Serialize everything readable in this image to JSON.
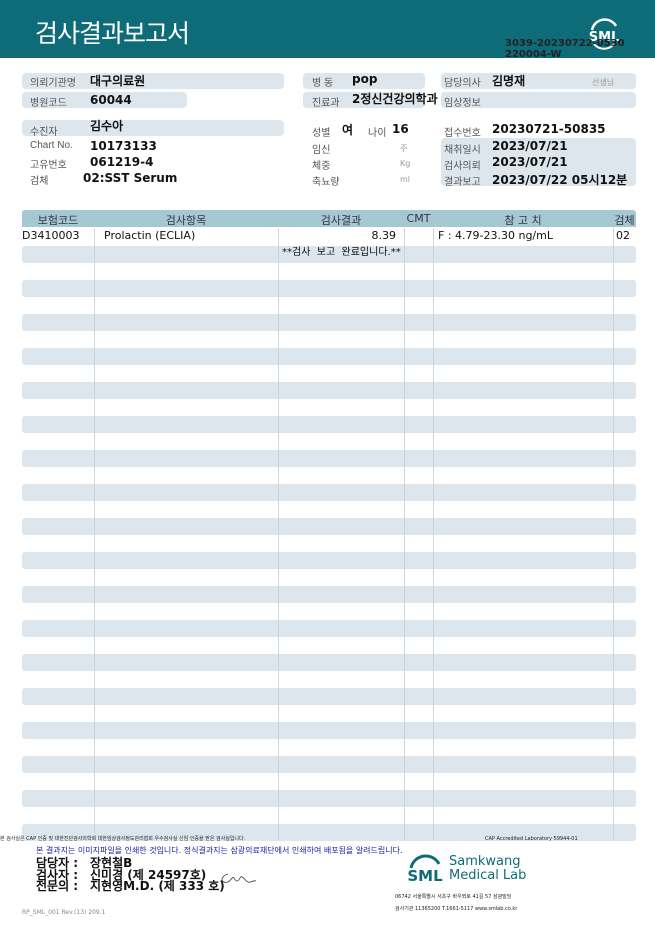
{
  "header": {
    "title": "검사결과보고서",
    "doc_no_line1": "3039-20230722-0530",
    "doc_no_line2": "220004-W",
    "logo": "SML"
  },
  "info": {
    "institution_label": "의뢰기관명",
    "institution": "대구의료원",
    "hospital_code_label": "병원코드",
    "hospital_code": "60044",
    "ward_label": "병 동",
    "ward": "pop",
    "dept_label": "진료과",
    "dept": "2정신건강의학과",
    "doctor_label": "담당의사",
    "doctor": "김명재",
    "doctor_suffix": "선생님",
    "clinical_label": "임상정보",
    "patient_label": "수진자",
    "patient": "김수아",
    "chart_label": "Chart No.",
    "chart": "10173133",
    "id_label": "고유번호",
    "id": "061219-4",
    "specimen_label": "검체",
    "specimen": "02:SST Serum",
    "sex_label": "성별",
    "sex": "여",
    "age_label": "나이",
    "age": "16",
    "preg_label": "임신",
    "preg_unit": "주",
    "weight_label": "체중",
    "weight_unit": "Kg",
    "urine_label": "축뇨량",
    "urine_unit": "ml",
    "receipt_label": "접수번호",
    "receipt": "20230721-50835",
    "collect_label": "채취일시",
    "collect": "2023/07/21",
    "request_label": "검사의뢰",
    "request": "2023/07/21",
    "report_label": "결과보고",
    "report": "2023/07/22 05시12분"
  },
  "table": {
    "headers": [
      "보험코드",
      "검사항목",
      "검사결과",
      "CMT",
      "참 고 치",
      "검체"
    ],
    "rows": [
      {
        "code": "D3410003",
        "item": "Prolactin (ECLIA)",
        "result": "8.39",
        "cmt": "",
        "ref": "F : 4.79-23.30 ng/mL",
        "specimen": "02"
      }
    ],
    "note": "**검사  보고  완료입니다.**"
  },
  "footer": {
    "cert_text": "본 검사실은 CAP 인증 및 대한진단검사의학회 대한임상검사정도관리협회 우수검사실 신임 인증을 받은 검사실입니다.",
    "cap_text": "CAP Accredited Laboratory 59944-01",
    "notice": "본 결과지는 이미지파일을 인쇄한 것입니다. 정식결과지는 삼광의료재단에서 인쇄하여 배포됨을 알려드립니다.",
    "manager_label": "담당자 :",
    "manager": "장현철B",
    "tester_label": "검사자 :",
    "tester": "신미경 (제 24597호)",
    "specialist_label": "전문의 :",
    "specialist": "지현영M.D. (제 333 호)",
    "brand_logo": "SML",
    "brand_line1": "Samkwang",
    "brand_line2": "Medical Lab",
    "address": "06742 서울특별시 서초구 바우뫼로 41길 57 삼광빌딩",
    "contact": "검사기관 11365200 T.1661-5117 www.smlab.co.kr",
    "form_code": "RP_SML_001 Rev.(13) 209.1"
  },
  "colors": {
    "header": "#0e6b78",
    "field_bg": "#dde6ed",
    "table_header": "#a6c8d3",
    "notice": "#1a1aa8"
  }
}
